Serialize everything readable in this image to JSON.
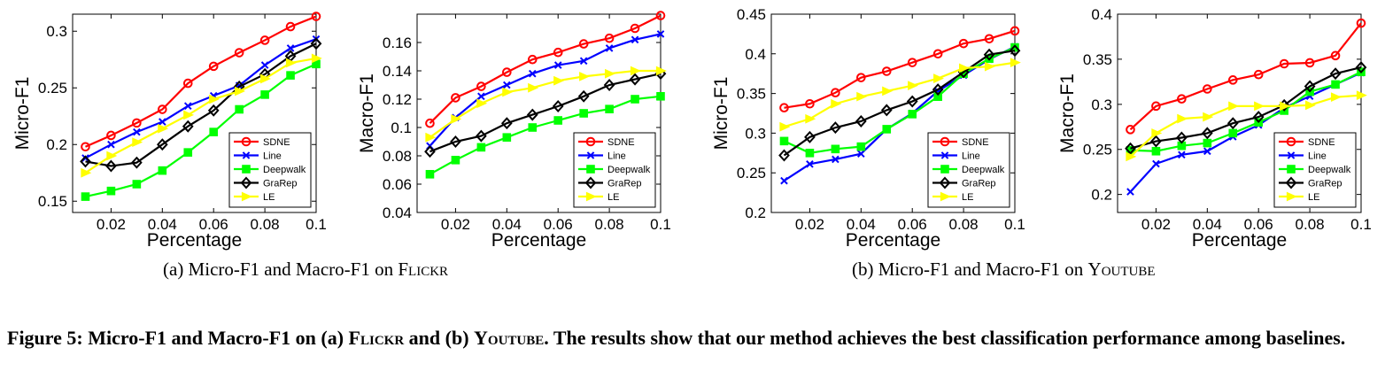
{
  "chart_data": [
    {
      "type": "line",
      "xlabel": "Percentage",
      "ylabel": "Micro-F1",
      "xlim": [
        0.005,
        0.1
      ],
      "ylim": [
        0.14,
        0.315
      ],
      "xticks": [
        "0.02",
        "0.04",
        "0.06",
        "0.08",
        "0.1"
      ],
      "yticks": [
        "0.15",
        "0.2",
        "0.25",
        "0.3"
      ],
      "legend_position": "lower-right",
      "x": [
        0.01,
        0.02,
        0.03,
        0.04,
        0.05,
        0.06,
        0.07,
        0.08,
        0.09,
        0.1
      ],
      "series": [
        {
          "name": "SDNE",
          "color": "#ff0000",
          "marker": "circle",
          "values": [
            0.198,
            0.208,
            0.219,
            0.231,
            0.254,
            0.269,
            0.281,
            0.292,
            0.304,
            0.313
          ]
        },
        {
          "name": "Line",
          "color": "#0000ff",
          "marker": "x",
          "values": [
            0.188,
            0.2,
            0.211,
            0.22,
            0.234,
            0.243,
            0.252,
            0.27,
            0.285,
            0.293
          ]
        },
        {
          "name": "Deepwalk",
          "color": "#00ff00",
          "marker": "square",
          "values": [
            0.154,
            0.159,
            0.165,
            0.177,
            0.193,
            0.211,
            0.231,
            0.244,
            0.261,
            0.271
          ]
        },
        {
          "name": "GraRep",
          "color": "#000000",
          "marker": "diamond",
          "values": [
            0.185,
            0.181,
            0.184,
            0.2,
            0.216,
            0.23,
            0.251,
            0.262,
            0.278,
            0.289
          ]
        },
        {
          "name": "LE",
          "color": "#ffff00",
          "marker": "triangle-right",
          "values": [
            0.175,
            0.19,
            0.202,
            0.214,
            0.226,
            0.24,
            0.247,
            0.258,
            0.272,
            0.276
          ]
        }
      ]
    },
    {
      "type": "line",
      "xlabel": "Percentage",
      "ylabel": "Macro-F1",
      "xlim": [
        0.005,
        0.1
      ],
      "ylim": [
        0.04,
        0.18
      ],
      "xticks": [
        "0.02",
        "0.04",
        "0.06",
        "0.08",
        "0.1"
      ],
      "yticks": [
        "0.04",
        "0.06",
        "0.08",
        "0.1",
        "0.12",
        "0.14",
        "0.16"
      ],
      "legend_position": "lower-right",
      "x": [
        0.01,
        0.02,
        0.03,
        0.04,
        0.05,
        0.06,
        0.07,
        0.08,
        0.09,
        0.1
      ],
      "series": [
        {
          "name": "SDNE",
          "color": "#ff0000",
          "marker": "circle",
          "values": [
            0.103,
            0.121,
            0.129,
            0.139,
            0.148,
            0.153,
            0.159,
            0.163,
            0.17,
            0.179
          ]
        },
        {
          "name": "Line",
          "color": "#0000ff",
          "marker": "x",
          "values": [
            0.087,
            0.107,
            0.122,
            0.13,
            0.138,
            0.144,
            0.147,
            0.156,
            0.162,
            0.166
          ]
        },
        {
          "name": "Deepwalk",
          "color": "#00ff00",
          "marker": "square",
          "values": [
            0.067,
            0.077,
            0.086,
            0.093,
            0.1,
            0.105,
            0.11,
            0.113,
            0.12,
            0.122
          ]
        },
        {
          "name": "GraRep",
          "color": "#000000",
          "marker": "diamond",
          "values": [
            0.083,
            0.09,
            0.094,
            0.103,
            0.109,
            0.115,
            0.122,
            0.13,
            0.134,
            0.138
          ]
        },
        {
          "name": "LE",
          "color": "#ffff00",
          "marker": "triangle-right",
          "values": [
            0.093,
            0.106,
            0.117,
            0.125,
            0.128,
            0.133,
            0.136,
            0.138,
            0.14,
            0.14
          ]
        }
      ]
    },
    {
      "type": "line",
      "xlabel": "Percentage",
      "ylabel": "Micro-F1",
      "xlim": [
        0.005,
        0.1
      ],
      "ylim": [
        0.2,
        0.45
      ],
      "xticks": [
        "0.02",
        "0.04",
        "0.06",
        "0.08",
        "0.1"
      ],
      "yticks": [
        "0.2",
        "0.25",
        "0.3",
        "0.35",
        "0.4",
        "0.45"
      ],
      "legend_position": "lower-right",
      "x": [
        0.01,
        0.02,
        0.03,
        0.04,
        0.05,
        0.06,
        0.07,
        0.08,
        0.09,
        0.1
      ],
      "series": [
        {
          "name": "SDNE",
          "color": "#ff0000",
          "marker": "circle",
          "values": [
            0.332,
            0.337,
            0.351,
            0.37,
            0.378,
            0.389,
            0.4,
            0.413,
            0.419,
            0.429
          ]
        },
        {
          "name": "Line",
          "color": "#0000ff",
          "marker": "x",
          "values": [
            0.24,
            0.261,
            0.267,
            0.274,
            0.305,
            0.325,
            0.353,
            0.373,
            0.393,
            0.409
          ]
        },
        {
          "name": "Deepwalk",
          "color": "#00ff00",
          "marker": "square",
          "values": [
            0.29,
            0.275,
            0.28,
            0.283,
            0.305,
            0.324,
            0.346,
            0.375,
            0.394,
            0.408
          ]
        },
        {
          "name": "GraRep",
          "color": "#000000",
          "marker": "diamond",
          "values": [
            0.272,
            0.295,
            0.307,
            0.315,
            0.329,
            0.34,
            0.355,
            0.377,
            0.399,
            0.404
          ]
        },
        {
          "name": "LE",
          "color": "#ffff00",
          "marker": "triangle-right",
          "values": [
            0.308,
            0.318,
            0.337,
            0.346,
            0.353,
            0.36,
            0.369,
            0.382,
            0.384,
            0.389
          ]
        }
      ]
    },
    {
      "type": "line",
      "xlabel": "Percentage",
      "ylabel": "Macro-F1",
      "xlim": [
        0.005,
        0.1
      ],
      "ylim": [
        0.18,
        0.4
      ],
      "xticks": [
        "0.02",
        "0.04",
        "0.06",
        "0.08",
        "0.1"
      ],
      "yticks": [
        "0.2",
        "0.25",
        "0.3",
        "0.35",
        "0.4"
      ],
      "legend_position": "lower-right",
      "x": [
        0.01,
        0.02,
        0.03,
        0.04,
        0.05,
        0.06,
        0.07,
        0.08,
        0.09,
        0.1
      ],
      "series": [
        {
          "name": "SDNE",
          "color": "#ff0000",
          "marker": "circle",
          "values": [
            0.272,
            0.298,
            0.306,
            0.317,
            0.327,
            0.333,
            0.345,
            0.346,
            0.354,
            0.39
          ]
        },
        {
          "name": "Line",
          "color": "#0000ff",
          "marker": "x",
          "values": [
            0.203,
            0.234,
            0.244,
            0.248,
            0.264,
            0.277,
            0.296,
            0.309,
            0.322,
            0.335
          ]
        },
        {
          "name": "Deepwalk",
          "color": "#00ff00",
          "marker": "square",
          "values": [
            0.249,
            0.248,
            0.254,
            0.257,
            0.268,
            0.28,
            0.293,
            0.314,
            0.322,
            0.336
          ]
        },
        {
          "name": "GraRep",
          "color": "#000000",
          "marker": "diamond",
          "values": [
            0.251,
            0.259,
            0.263,
            0.268,
            0.279,
            0.286,
            0.299,
            0.32,
            0.334,
            0.341
          ]
        },
        {
          "name": "LE",
          "color": "#ffff00",
          "marker": "triangle-right",
          "values": [
            0.242,
            0.268,
            0.284,
            0.286,
            0.298,
            0.298,
            0.298,
            0.299,
            0.308,
            0.31
          ]
        }
      ]
    }
  ],
  "subcaptions": [
    {
      "prefix": "(a) Micro-F1 and Macro-F1 on ",
      "dataset": "Flickr"
    },
    {
      "prefix": "(b) Micro-F1 and Macro-F1 on ",
      "dataset": "Youtube"
    }
  ],
  "caption": {
    "lead": "Figure 5: Micro-F1 and Macro-F1 on (a) ",
    "dataset_a": "Flickr",
    "mid": " and (b) ",
    "dataset_b": "Youtube",
    "tail": ". The results show that our method achieves the best classification performance among baselines."
  }
}
